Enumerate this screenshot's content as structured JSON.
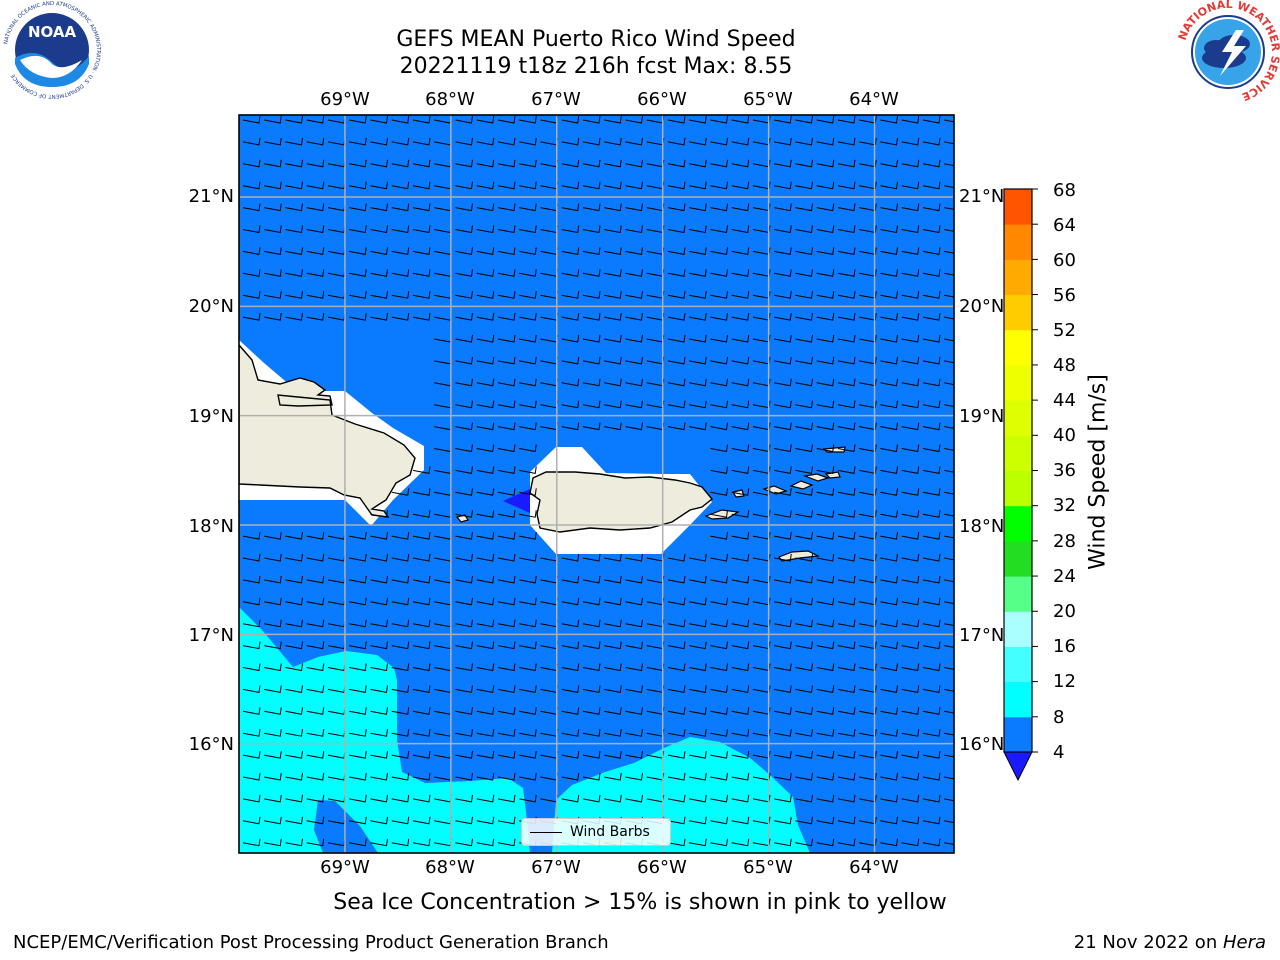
{
  "title": {
    "line1": "GEFS MEAN Puerto Rico Wind Speed",
    "line2": "20221119 t18z 216h fcst   Max: 8.55"
  },
  "map": {
    "lon_labels": [
      "69°W",
      "68°W",
      "67°W",
      "66°W",
      "65°W",
      "64°W"
    ],
    "lat_labels": [
      "21°N",
      "20°N",
      "19°N",
      "18°N",
      "17°N",
      "16°N"
    ],
    "lon_values": [
      -69,
      -68,
      -67,
      -66,
      -65,
      -64
    ],
    "lat_values": [
      21,
      20,
      19,
      18,
      17,
      16
    ],
    "lon_range": [
      -70.0,
      -63.25
    ],
    "lat_range": [
      15.0,
      21.75
    ],
    "ocean_color": "#0a7aff",
    "high_wind_color": "#00ffff",
    "land_color": "#eeecdc",
    "missing_color": "#ffffff",
    "below_range_color": "#1a1aff",
    "grid": true,
    "wind_barbs": true
  },
  "colorbar": {
    "label": "Wind Speed [m/s]",
    "ticks": [
      "68",
      "64",
      "60",
      "56",
      "52",
      "48",
      "44",
      "40",
      "36",
      "32",
      "28",
      "24",
      "20",
      "16",
      "12",
      "8",
      "4"
    ],
    "levels": [
      4,
      8,
      12,
      16,
      20,
      24,
      28,
      32,
      36,
      40,
      44,
      48,
      52,
      56,
      60,
      64,
      68
    ],
    "colors": [
      "#0a7aff",
      "#00ffff",
      "#44ffff",
      "#aaffff",
      "#55ff88",
      "#22dd22",
      "#00ff00",
      "#bbff00",
      "#ccff00",
      "#ddff00",
      "#eeff00",
      "#ffff00",
      "#ffcc00",
      "#ffaa00",
      "#ff8800",
      "#ff5500",
      "#ff2200"
    ],
    "extend_color": "#1a1aff"
  },
  "legend": {
    "label": "Wind Barbs"
  },
  "footnote": "Sea Ice Concentration > 15% is shown in pink to yellow",
  "credit": "NCEP/EMC/Verification Post Processing Product Generation Branch",
  "date": {
    "text": "21 Nov 2022 on ",
    "host": "Hera"
  },
  "logos": {
    "noaa": {
      "text": "NOAA",
      "ring_text": "NATIONAL OCEANIC AND ATMOSPHERIC ADMINISTRATION · U.S. DEPARTMENT OF COMMERCE"
    },
    "nws": {
      "ring_text": "NATIONAL WEATHER SERVICE"
    }
  }
}
